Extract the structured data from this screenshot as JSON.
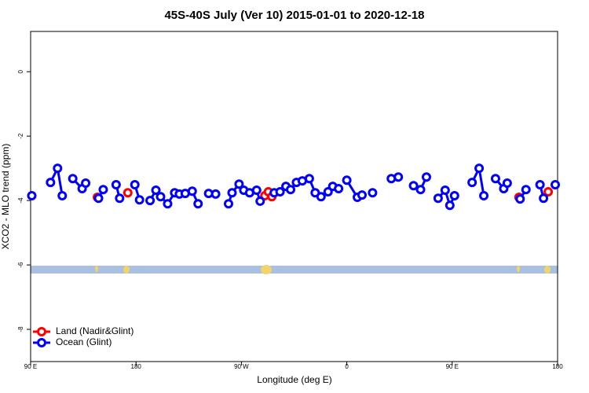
{
  "chart_data": {
    "type": "line",
    "title": "45S-40S July (Ver 10)   2015-01-01 to 2020-12-18",
    "xlabel": "Longitude (deg E)",
    "ylabel": "XCO2 - MLO trend (ppm)",
    "xlim": [
      90,
      540
    ],
    "ylim": [
      -9,
      1.25
    ],
    "xticks": [
      {
        "value": 90,
        "label": "90 E"
      },
      180,
      {
        "value": 270,
        "label": "90 W"
      },
      {
        "value": 360,
        "label": "0"
      },
      {
        "value": 450,
        "label": "90 E"
      },
      {
        "value": 540,
        "label": "180"
      }
    ],
    "yticks": [
      -8,
      -6,
      -4,
      -2,
      0
    ],
    "legend": "bottom-left",
    "series": [
      {
        "name": "Land (Nadir&Glint)",
        "color": "#ff0000",
        "x": [
          147,
          null,
          173,
          null,
          290,
          293,
          296,
          null,
          507,
          null,
          532
        ],
        "values": [
          -3.9,
          null,
          -3.76,
          null,
          -3.85,
          -3.73,
          -3.88,
          null,
          -3.9,
          null,
          -3.73
        ]
      },
      {
        "name": "Ocean (Glint)",
        "color": "#0000ff",
        "x": [
          91,
          null,
          107,
          113,
          117,
          null,
          126,
          134,
          137,
          null,
          148,
          152,
          null,
          163,
          166,
          null,
          179,
          183,
          null,
          192,
          197,
          201,
          207,
          213,
          217,
          222,
          228,
          233,
          null,
          242,
          248,
          null,
          259,
          262,
          268,
          272,
          277,
          283,
          286,
          null,
          298,
          303,
          308,
          312,
          317,
          322,
          328,
          333,
          338,
          344,
          348,
          353,
          null,
          360,
          369,
          373,
          null,
          382,
          null,
          398,
          404,
          null,
          417,
          423,
          428,
          null,
          438,
          444,
          448,
          452,
          null,
          467,
          473,
          477,
          null,
          487,
          494,
          497,
          null,
          508,
          513,
          null,
          525,
          528,
          null,
          538
        ],
        "values": [
          -3.85,
          null,
          -3.44,
          -3.0,
          -3.85,
          null,
          -3.32,
          -3.63,
          -3.46,
          null,
          -3.93,
          -3.66,
          null,
          -3.51,
          -3.93,
          null,
          -3.51,
          -3.98,
          null,
          -4.0,
          -3.68,
          -3.88,
          -4.1,
          -3.76,
          -3.8,
          -3.78,
          -3.71,
          -4.1,
          null,
          -3.78,
          -3.8,
          null,
          -4.1,
          -3.76,
          -3.49,
          -3.68,
          -3.76,
          -3.68,
          -4.02,
          null,
          -3.76,
          -3.73,
          -3.56,
          -3.66,
          -3.44,
          -3.39,
          -3.32,
          -3.76,
          -3.88,
          -3.73,
          -3.56,
          -3.63,
          null,
          -3.37,
          -3.9,
          -3.83,
          null,
          -3.76,
          null,
          -3.32,
          -3.27,
          null,
          -3.54,
          -3.66,
          -3.27,
          null,
          -3.93,
          -3.68,
          -4.15,
          -3.85,
          null,
          -3.44,
          -3.0,
          -3.85,
          null,
          -3.32,
          -3.63,
          -3.46,
          null,
          -3.95,
          -3.66,
          null,
          -3.51,
          -3.93,
          null,
          -3.51
        ]
      }
    ]
  }
}
